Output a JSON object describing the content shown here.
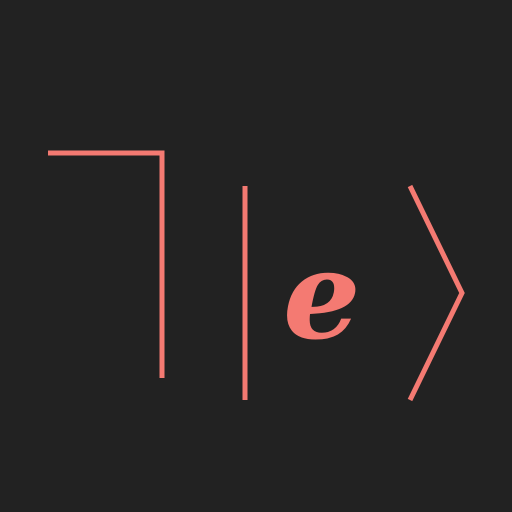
{
  "logo": {
    "letter": "e",
    "accent_color": "#F47A72",
    "background_color": "#222222",
    "shapes": [
      "not-sign-bracket",
      "vertical-bar",
      "right-angle-bracket"
    ]
  }
}
